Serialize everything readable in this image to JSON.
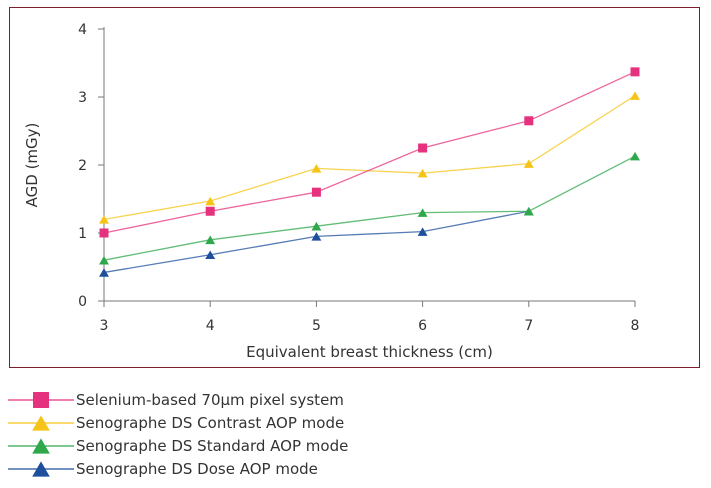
{
  "chart_data": {
    "type": "line",
    "title": "",
    "xlabel": "Equivalent breast thickness (cm)",
    "ylabel": "AGD (mGy)",
    "x": [
      3,
      4,
      5,
      6,
      7,
      8
    ],
    "x_ticks": [
      "3",
      "4",
      "5",
      "6",
      "7",
      "8"
    ],
    "y_ticks": [
      "0",
      "1",
      "2",
      "3",
      "4"
    ],
    "xlim": [
      3,
      8
    ],
    "ylim": [
      0,
      4
    ],
    "grid": false,
    "legend_position": "bottom",
    "series": [
      {
        "name": "Selenium-based 70µm pixel system",
        "color": "#e6317e",
        "marker": "square",
        "values": [
          1.0,
          1.32,
          1.6,
          2.25,
          2.65,
          3.37
        ]
      },
      {
        "name": "Senographe DS Contrast AOP mode",
        "color": "#f5c416",
        "marker": "triangle",
        "values": [
          1.2,
          1.47,
          1.95,
          1.88,
          2.02,
          3.02
        ]
      },
      {
        "name": "Senographe DS Standard AOP mode",
        "color": "#2ea84a",
        "marker": "triangle",
        "values": [
          0.6,
          0.9,
          1.1,
          1.3,
          1.32,
          2.13
        ]
      },
      {
        "name": "Senographe DS Dose AOP mode",
        "color": "#1d4f9c",
        "marker": "triangle",
        "values": [
          0.42,
          0.68,
          0.95,
          1.02,
          1.32,
          null
        ]
      }
    ]
  }
}
